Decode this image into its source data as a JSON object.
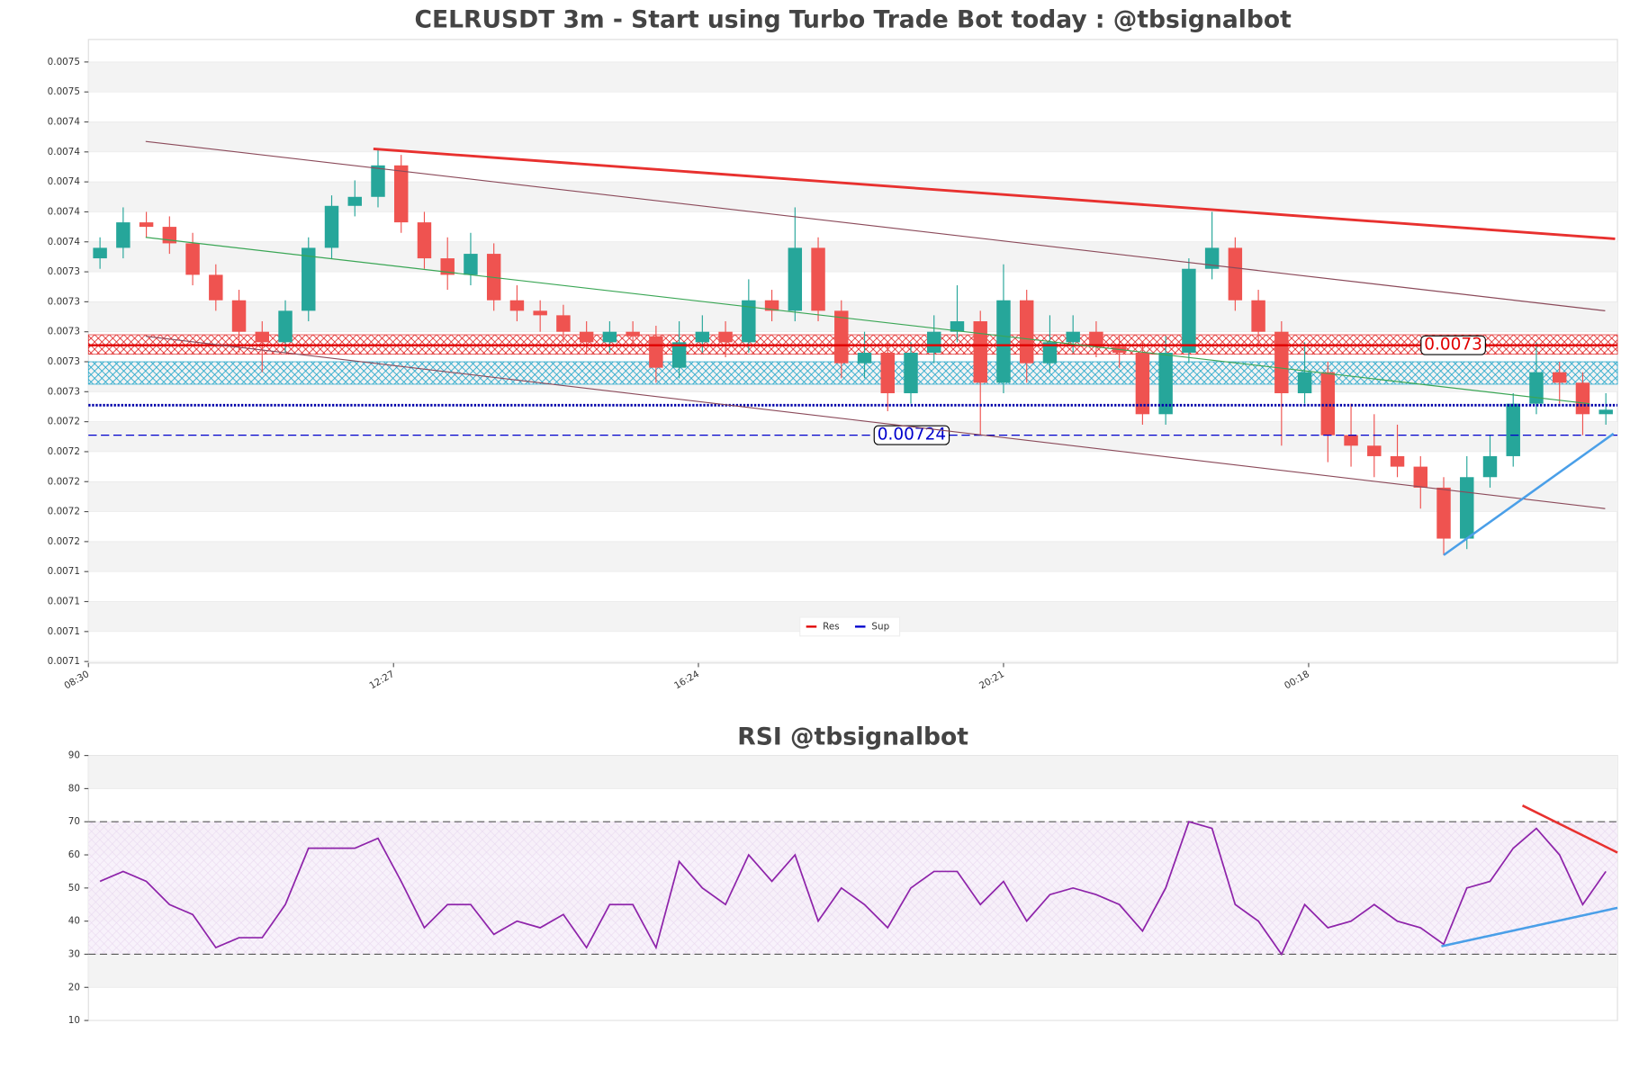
{
  "chart_data": [
    {
      "type": "candlestick",
      "title": "CELRUSDT 3m - Start using Turbo Trade Bot today : @tbsignalbot",
      "x": [
        0,
        1,
        2,
        3,
        4,
        5,
        6,
        7,
        8,
        9,
        10,
        11,
        12,
        13,
        14,
        15,
        16,
        17,
        18,
        19,
        20,
        21,
        22,
        23,
        24,
        25,
        26,
        27,
        28,
        29,
        30,
        31,
        32,
        33,
        34,
        35,
        36,
        37,
        38,
        39,
        40,
        41,
        42,
        43,
        44,
        45,
        46,
        47,
        48,
        49,
        50,
        51,
        52,
        53,
        54,
        55,
        56,
        57,
        58,
        59,
        60,
        61,
        62,
        63,
        64,
        65
      ],
      "open": [
        0.007358,
        0.007365,
        0.007382,
        0.007379,
        0.007368,
        0.007347,
        0.00733,
        0.007309,
        0.007302,
        0.007323,
        0.007365,
        0.007393,
        0.007399,
        0.00742,
        0.007382,
        0.007358,
        0.007347,
        0.007361,
        0.00733,
        0.007323,
        0.00732,
        0.007309,
        0.007302,
        0.007309,
        0.007306,
        0.007285,
        0.007302,
        0.007309,
        0.007302,
        0.00733,
        0.007323,
        0.007365,
        0.007323,
        0.007288,
        0.007295,
        0.007268,
        0.007295,
        0.007309,
        0.007316,
        0.007275,
        0.00733,
        0.007288,
        0.007302,
        0.007309,
        0.007299,
        0.007295,
        0.007254,
        0.007295,
        0.007351,
        0.007365,
        0.00733,
        0.007309,
        0.007268,
        0.007282,
        0.00724,
        0.007233,
        0.007226,
        0.007219,
        0.007205,
        0.007171,
        0.007212,
        0.007226,
        0.007261,
        0.007282,
        0.007275,
        0.007254
      ],
      "high": [
        0.007372,
        0.007392,
        0.007389,
        0.007386,
        0.007375,
        0.007354,
        0.007337,
        0.007316,
        0.00733,
        0.007372,
        0.0074,
        0.00741,
        0.007431,
        0.007427,
        0.007389,
        0.007372,
        0.007375,
        0.007368,
        0.00734,
        0.00733,
        0.007327,
        0.007316,
        0.007316,
        0.007316,
        0.007313,
        0.007316,
        0.00732,
        0.007316,
        0.007344,
        0.007337,
        0.007392,
        0.007372,
        0.00733,
        0.007309,
        0.007302,
        0.007302,
        0.00732,
        0.00734,
        0.007323,
        0.007354,
        0.007337,
        0.00732,
        0.00732,
        0.007316,
        0.007306,
        0.007302,
        0.007306,
        0.007358,
        0.007389,
        0.007372,
        0.007337,
        0.007316,
        0.007302,
        0.007289,
        0.007261,
        0.007254,
        0.007247,
        0.007226,
        0.007212,
        0.007226,
        0.00724,
        0.007268,
        0.007302,
        0.007289,
        0.007282,
        0.007268
      ],
      "low": [
        0.007351,
        0.007358,
        0.007372,
        0.007361,
        0.00734,
        0.007323,
        0.007295,
        0.007282,
        0.007295,
        0.007316,
        0.007358,
        0.007386,
        0.007392,
        0.007375,
        0.007351,
        0.007337,
        0.00734,
        0.007323,
        0.007316,
        0.007309,
        0.007302,
        0.007295,
        0.007295,
        0.007299,
        0.007275,
        0.007278,
        0.007295,
        0.007292,
        0.007295,
        0.007316,
        0.007316,
        0.007316,
        0.007278,
        0.007278,
        0.007256,
        0.007261,
        0.007288,
        0.007302,
        0.00724,
        0.007268,
        0.007275,
        0.007282,
        0.007295,
        0.007292,
        0.007285,
        0.007247,
        0.007247,
        0.007288,
        0.007344,
        0.007323,
        0.007299,
        0.007233,
        0.007261,
        0.007222,
        0.007219,
        0.007212,
        0.007212,
        0.007191,
        0.00716,
        0.007164,
        0.007205,
        0.007219,
        0.007254,
        0.007261,
        0.00724,
        0.007247
      ],
      "close": [
        0.007365,
        0.007382,
        0.007379,
        0.007368,
        0.007347,
        0.00733,
        0.007309,
        0.007302,
        0.007323,
        0.007365,
        0.007393,
        0.007399,
        0.00742,
        0.007382,
        0.007358,
        0.007347,
        0.007361,
        0.00733,
        0.007323,
        0.00732,
        0.007309,
        0.007302,
        0.007309,
        0.007306,
        0.007285,
        0.007302,
        0.007309,
        0.007302,
        0.00733,
        0.007323,
        0.007365,
        0.007323,
        0.007288,
        0.007295,
        0.007268,
        0.007295,
        0.007309,
        0.007316,
        0.007275,
        0.00733,
        0.007288,
        0.007302,
        0.007309,
        0.007299,
        0.007295,
        0.007254,
        0.007295,
        0.007351,
        0.007365,
        0.00733,
        0.007309,
        0.007268,
        0.007282,
        0.00724,
        0.007233,
        0.007226,
        0.007219,
        0.007205,
        0.007171,
        0.007212,
        0.007226,
        0.007261,
        0.007282,
        0.007275,
        0.007254,
        0.007257
      ],
      "up_color": "#26a69a",
      "down_color": "#ef5350",
      "xlim": [
        -0.5,
        65.5
      ],
      "xticks": [
        {
          "value": -0.5,
          "label": "08:30"
        },
        {
          "value": 12.67,
          "label": "12:27"
        },
        {
          "value": 25.83,
          "label": "16:24"
        },
        {
          "value": 39,
          "label": "20:21"
        },
        {
          "value": 52.17,
          "label": "00:18"
        }
      ],
      "ylim": [
        0.007088,
        0.007504
      ],
      "yticks": [
        {
          "value": 0.007089,
          "label": "0.0071"
        },
        {
          "value": 0.007109,
          "label": "0.0071"
        },
        {
          "value": 0.007129,
          "label": "0.0071"
        },
        {
          "value": 0.007149,
          "label": "0.0071"
        },
        {
          "value": 0.007169,
          "label": "0.0072"
        },
        {
          "value": 0.007189,
          "label": "0.0072"
        },
        {
          "value": 0.007209,
          "label": "0.0072"
        },
        {
          "value": 0.007229,
          "label": "0.0072"
        },
        {
          "value": 0.007249,
          "label": "0.0072"
        },
        {
          "value": 0.007269,
          "label": "0.0073"
        },
        {
          "value": 0.007289,
          "label": "0.0073"
        },
        {
          "value": 0.007309,
          "label": "0.0073"
        },
        {
          "value": 0.007329,
          "label": "0.0073"
        },
        {
          "value": 0.007349,
          "label": "0.0073"
        },
        {
          "value": 0.007369,
          "label": "0.0074"
        },
        {
          "value": 0.007389,
          "label": "0.0074"
        },
        {
          "value": 0.007409,
          "label": "0.0074"
        },
        {
          "value": 0.007429,
          "label": "0.0074"
        },
        {
          "value": 0.007449,
          "label": "0.0074"
        },
        {
          "value": 0.007469,
          "label": "0.0075"
        },
        {
          "value": 0.007489,
          "label": "0.0075"
        }
      ],
      "zones": [
        {
          "range": [
            0.007294,
            0.007307
          ],
          "color": "#e02020"
        },
        {
          "range": [
            0.007274,
            0.007289
          ],
          "color": "#1aa3c8"
        }
      ],
      "levels": [
        {
          "name": "Res",
          "value": 0.0073,
          "color": "#e00000",
          "style": "solid"
        },
        {
          "name": "Sup",
          "value": 0.00724,
          "color": "#0000cc",
          "style": "dashed"
        },
        {
          "value": 0.00726,
          "color": "#0000aa",
          "style": "dotted"
        }
      ],
      "trend_lines": [
        {
          "x": [
            11.8,
            65.4
          ],
          "y": [
            0.007431,
            0.007371
          ],
          "color": "#e8312f",
          "width": 2.5
        },
        {
          "x": [
            1.97,
            64.97
          ],
          "y": [
            0.007436,
            0.007323
          ],
          "color": "#8b4a5a",
          "width": 1
        },
        {
          "x": [
            1.97,
            64.97
          ],
          "y": [
            0.007306,
            0.007191
          ],
          "color": "#8b4a5a",
          "width": 1
        },
        {
          "x": [
            1.97,
            64.3
          ],
          "y": [
            0.007372,
            0.007261
          ],
          "color": "#3aa655",
          "width": 1
        },
        {
          "x": [
            58.0,
            65.33
          ],
          "y": [
            0.00716,
            0.007241
          ],
          "color": "#4a9fe8",
          "width": 2.2
        }
      ],
      "legend": "lower center"
    },
    {
      "type": "line",
      "title": "RSI @tbsignalbot",
      "x": [
        0,
        1,
        2,
        3,
        4,
        5,
        6,
        7,
        8,
        9,
        10,
        11,
        12,
        13,
        14,
        15,
        16,
        17,
        18,
        19,
        20,
        21,
        22,
        23,
        24,
        25,
        26,
        27,
        28,
        29,
        30,
        31,
        32,
        33,
        34,
        35,
        36,
        37,
        38,
        39,
        40,
        41,
        42,
        43,
        44,
        45,
        46,
        47,
        48,
        49,
        50,
        51,
        52,
        53,
        54,
        55,
        56,
        57,
        58,
        59,
        60,
        61,
        62,
        63,
        64,
        65
      ],
      "values": [
        52,
        55,
        52,
        45,
        42,
        32,
        35,
        35,
        45,
        62,
        62,
        62,
        65,
        52,
        38,
        45,
        45,
        36,
        40,
        38,
        42,
        32,
        45,
        45,
        32,
        58,
        50,
        45,
        60,
        52,
        60,
        40,
        50,
        45,
        38,
        50,
        55,
        55,
        45,
        52,
        40,
        48,
        50,
        48,
        45,
        37,
        50,
        70,
        68,
        45,
        40,
        30,
        45,
        38,
        40,
        45,
        40,
        38,
        33,
        50,
        52,
        62,
        68,
        60,
        45,
        55
      ],
      "color": "#8e24aa",
      "xlim": [
        -0.5,
        65.5
      ],
      "ylim": [
        10,
        90
      ],
      "yticks": [
        10,
        20,
        30,
        40,
        50,
        60,
        70,
        80,
        90
      ],
      "hlines": [
        70,
        30
      ],
      "zone": [
        30,
        70
      ],
      "trend_lines": [
        {
          "x": [
            61.4,
            65.5
          ],
          "y": [
            74.9,
            60.7
          ],
          "color": "#e8312f",
          "width": 2.2
        },
        {
          "x": [
            57.9,
            65.5
          ],
          "y": [
            32.4,
            44.0
          ],
          "color": "#4a9fe8",
          "width": 2.2
        }
      ]
    }
  ]
}
